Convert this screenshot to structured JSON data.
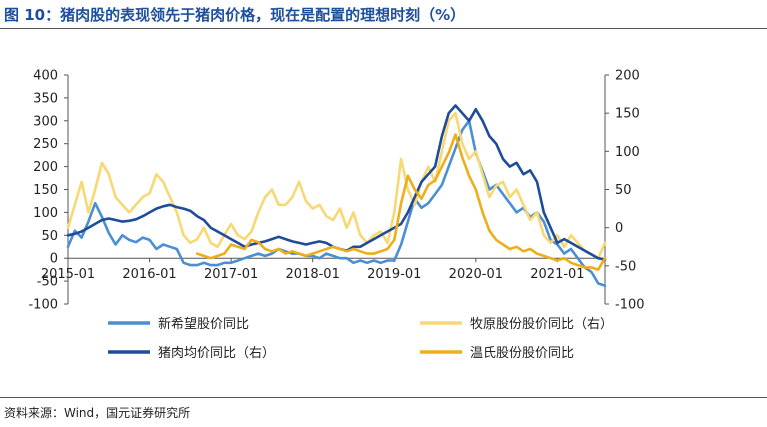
{
  "header": {
    "title": "图 10：猪肉股的表现领先于猪肉价格，现在是配置的理想时刻（%）"
  },
  "footer": {
    "source": "资料来源：Wind，国元证券研究所"
  },
  "colors": {
    "新希望": "#4a8ed4",
    "牧原": "#f7d873",
    "猪肉": "#1f4c9a",
    "温氏": "#eeae1a",
    "title": "#1e4f9c"
  },
  "chart_data": {
    "type": "line",
    "title": "",
    "xlabel": "",
    "ylabel": "",
    "x_ticks": [
      "2015-01",
      "2016-01",
      "2017-01",
      "2018-01",
      "2019-01",
      "2020-01",
      "2021-01"
    ],
    "x_range": [
      "2015-01",
      "2021-08"
    ],
    "y_left": {
      "min": -100,
      "max": 400,
      "ticks": [
        -100,
        -50,
        0,
        50,
        100,
        150,
        200,
        250,
        300,
        350,
        400
      ]
    },
    "y_right": {
      "min": -100,
      "max": 200,
      "ticks": [
        -100,
        -50,
        0,
        50,
        100,
        150,
        200
      ]
    },
    "grid": false,
    "legend": {
      "placement": "bottom",
      "items": [
        "新希望股价同比",
        "牧原股份股价同比（右）",
        "猪肉均价同比（右）",
        "温氏股份股价同比"
      ]
    },
    "series": [
      {
        "name": "新希望股价同比",
        "axis": "left",
        "color": "#4a8ed4",
        "x": [
          "2015-01",
          "2015-02",
          "2015-03",
          "2015-04",
          "2015-05",
          "2015-06",
          "2015-07",
          "2015-08",
          "2015-09",
          "2015-10",
          "2015-11",
          "2015-12",
          "2016-01",
          "2016-02",
          "2016-03",
          "2016-04",
          "2016-05",
          "2016-06",
          "2016-07",
          "2016-08",
          "2016-09",
          "2016-10",
          "2016-11",
          "2016-12",
          "2017-01",
          "2017-02",
          "2017-03",
          "2017-04",
          "2017-05",
          "2017-06",
          "2017-07",
          "2017-08",
          "2017-09",
          "2017-10",
          "2017-11",
          "2017-12",
          "2018-01",
          "2018-02",
          "2018-03",
          "2018-04",
          "2018-05",
          "2018-06",
          "2018-07",
          "2018-08",
          "2018-09",
          "2018-10",
          "2018-11",
          "2018-12",
          "2019-01",
          "2019-02",
          "2019-03",
          "2019-04",
          "2019-05",
          "2019-06",
          "2019-07",
          "2019-08",
          "2019-09",
          "2019-10",
          "2019-11",
          "2019-12",
          "2020-01",
          "2020-02",
          "2020-03",
          "2020-04",
          "2020-05",
          "2020-06",
          "2020-07",
          "2020-08",
          "2020-09",
          "2020-10",
          "2020-11",
          "2020-12",
          "2021-01",
          "2021-02",
          "2021-03",
          "2021-04",
          "2021-05",
          "2021-06",
          "2021-07",
          "2021-08"
        ],
        "values": [
          25,
          60,
          45,
          80,
          120,
          90,
          55,
          30,
          50,
          40,
          35,
          45,
          40,
          20,
          30,
          25,
          20,
          -10,
          -15,
          -15,
          -10,
          -15,
          -15,
          -10,
          -10,
          -5,
          0,
          5,
          10,
          5,
          10,
          20,
          15,
          10,
          10,
          5,
          5,
          0,
          10,
          5,
          0,
          0,
          -10,
          -5,
          -10,
          -5,
          -10,
          -5,
          -5,
          30,
          80,
          130,
          110,
          120,
          140,
          160,
          200,
          240,
          280,
          300,
          230,
          190,
          150,
          160,
          140,
          120,
          100,
          110,
          90,
          100,
          80,
          40,
          30,
          10,
          20,
          0,
          -20,
          -30,
          -55,
          -60
        ]
      },
      {
        "name": "牧原股份股价同比（右）",
        "axis": "right",
        "color": "#f7d873",
        "x": [
          "2015-01",
          "2015-02",
          "2015-03",
          "2015-04",
          "2015-05",
          "2015-06",
          "2015-07",
          "2015-08",
          "2015-09",
          "2015-10",
          "2015-11",
          "2015-12",
          "2016-01",
          "2016-02",
          "2016-03",
          "2016-04",
          "2016-05",
          "2016-06",
          "2016-07",
          "2016-08",
          "2016-09",
          "2016-10",
          "2016-11",
          "2016-12",
          "2017-01",
          "2017-02",
          "2017-03",
          "2017-04",
          "2017-05",
          "2017-06",
          "2017-07",
          "2017-08",
          "2017-09",
          "2017-10",
          "2017-11",
          "2017-12",
          "2018-01",
          "2018-02",
          "2018-03",
          "2018-04",
          "2018-05",
          "2018-06",
          "2018-07",
          "2018-08",
          "2018-09",
          "2018-10",
          "2018-11",
          "2018-12",
          "2019-01",
          "2019-02",
          "2019-03",
          "2019-04",
          "2019-05",
          "2019-06",
          "2019-07",
          "2019-08",
          "2019-09",
          "2019-10",
          "2019-11",
          "2019-12",
          "2020-01",
          "2020-02",
          "2020-03",
          "2020-04",
          "2020-05",
          "2020-06",
          "2020-07",
          "2020-08",
          "2020-09",
          "2020-10",
          "2020-11",
          "2020-12",
          "2021-01",
          "2021-02",
          "2021-03",
          "2021-04",
          "2021-05",
          "2021-06",
          "2021-07",
          "2021-08"
        ],
        "values": [
          0,
          30,
          60,
          20,
          50,
          85,
          70,
          40,
          30,
          20,
          30,
          40,
          45,
          70,
          60,
          40,
          20,
          -10,
          -20,
          -15,
          0,
          -20,
          -25,
          -10,
          5,
          -10,
          -15,
          -5,
          20,
          40,
          50,
          30,
          30,
          40,
          60,
          35,
          25,
          30,
          15,
          10,
          25,
          0,
          20,
          -10,
          -20,
          -10,
          -5,
          -20,
          20,
          90,
          50,
          30,
          60,
          80,
          60,
          100,
          140,
          150,
          110,
          90,
          100,
          70,
          40,
          55,
          60,
          40,
          50,
          30,
          10,
          20,
          -10,
          -20,
          -10,
          -25,
          -10,
          -20,
          -30,
          -35,
          -40,
          -20
        ]
      },
      {
        "name": "猪肉均价同比（右）",
        "axis": "right",
        "color": "#1f4c9a",
        "x": [
          "2015-01",
          "2015-02",
          "2015-03",
          "2015-04",
          "2015-05",
          "2015-06",
          "2015-07",
          "2015-08",
          "2015-09",
          "2015-10",
          "2015-11",
          "2015-12",
          "2016-01",
          "2016-02",
          "2016-03",
          "2016-04",
          "2016-05",
          "2016-06",
          "2016-07",
          "2016-08",
          "2016-09",
          "2016-10",
          "2016-11",
          "2016-12",
          "2017-01",
          "2017-02",
          "2017-03",
          "2017-04",
          "2017-05",
          "2017-06",
          "2017-07",
          "2017-08",
          "2017-09",
          "2017-10",
          "2017-11",
          "2017-12",
          "2018-01",
          "2018-02",
          "2018-03",
          "2018-04",
          "2018-05",
          "2018-06",
          "2018-07",
          "2018-08",
          "2018-09",
          "2018-10",
          "2018-11",
          "2018-12",
          "2019-01",
          "2019-02",
          "2019-03",
          "2019-04",
          "2019-05",
          "2019-06",
          "2019-07",
          "2019-08",
          "2019-09",
          "2019-10",
          "2019-11",
          "2019-12",
          "2020-01",
          "2020-02",
          "2020-03",
          "2020-04",
          "2020-05",
          "2020-06",
          "2020-07",
          "2020-08",
          "2020-09",
          "2020-10",
          "2020-11",
          "2020-12",
          "2021-01",
          "2021-02",
          "2021-03",
          "2021-04",
          "2021-05",
          "2021-06",
          "2021-07",
          "2021-08"
        ],
        "values": [
          -10,
          -8,
          -5,
          0,
          5,
          10,
          12,
          10,
          8,
          9,
          11,
          15,
          20,
          25,
          28,
          30,
          27,
          25,
          22,
          15,
          10,
          0,
          -5,
          -10,
          -15,
          -20,
          -25,
          -22,
          -20,
          -18,
          -15,
          -12,
          -15,
          -18,
          -20,
          -22,
          -20,
          -18,
          -20,
          -25,
          -28,
          -30,
          -25,
          -25,
          -20,
          -15,
          -10,
          -5,
          0,
          5,
          20,
          40,
          60,
          70,
          80,
          120,
          150,
          160,
          150,
          140,
          155,
          140,
          120,
          110,
          90,
          80,
          85,
          70,
          75,
          60,
          20,
          0,
          -20,
          -15,
          -20,
          -25,
          -30,
          -35,
          -40,
          -42
        ]
      },
      {
        "name": "温氏股份股价同比",
        "axis": "left",
        "color": "#eeae1a",
        "x": [
          "2015-01",
          "2015-02",
          "2015-03",
          "2015-04",
          "2015-05",
          "2015-06",
          "2015-07",
          "2015-08",
          "2015-09",
          "2015-10",
          "2015-11",
          "2015-12",
          "2016-01",
          "2016-02",
          "2016-03",
          "2016-04",
          "2016-05",
          "2016-06",
          "2016-07",
          "2016-08",
          "2016-09",
          "2016-10",
          "2016-11",
          "2016-12",
          "2017-01",
          "2017-02",
          "2017-03",
          "2017-04",
          "2017-05",
          "2017-06",
          "2017-07",
          "2017-08",
          "2017-09",
          "2017-10",
          "2017-11",
          "2017-12",
          "2018-01",
          "2018-02",
          "2018-03",
          "2018-04",
          "2018-05",
          "2018-06",
          "2018-07",
          "2018-08",
          "2018-09",
          "2018-10",
          "2018-11",
          "2018-12",
          "2019-01",
          "2019-02",
          "2019-03",
          "2019-04",
          "2019-05",
          "2019-06",
          "2019-07",
          "2019-08",
          "2019-09",
          "2019-10",
          "2019-11",
          "2019-12",
          "2020-01",
          "2020-02",
          "2020-03",
          "2020-04",
          "2020-05",
          "2020-06",
          "2020-07",
          "2020-08",
          "2020-09",
          "2020-10",
          "2020-11",
          "2020-12",
          "2021-01",
          "2021-02",
          "2021-03",
          "2021-04",
          "2021-05",
          "2021-06",
          "2021-07",
          "2021-08"
        ],
        "values": [
          null,
          null,
          null,
          null,
          null,
          null,
          null,
          null,
          null,
          null,
          null,
          null,
          null,
          null,
          null,
          null,
          null,
          null,
          null,
          10,
          5,
          0,
          5,
          10,
          30,
          25,
          20,
          40,
          35,
          20,
          15,
          20,
          10,
          15,
          10,
          5,
          10,
          15,
          20,
          25,
          20,
          15,
          20,
          15,
          10,
          10,
          15,
          20,
          40,
          120,
          180,
          150,
          130,
          160,
          170,
          200,
          230,
          270,
          220,
          180,
          150,
          100,
          60,
          40,
          30,
          20,
          25,
          15,
          20,
          10,
          5,
          0,
          -5,
          0,
          -10,
          -15,
          -20,
          -20,
          -25,
          0
        ]
      }
    ]
  }
}
